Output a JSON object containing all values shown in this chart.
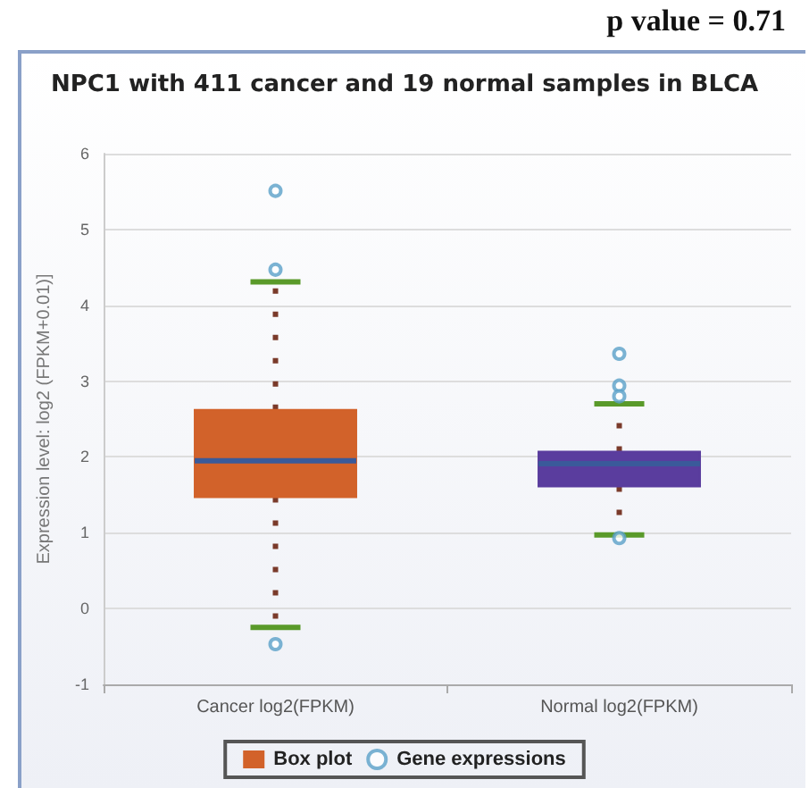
{
  "chart_data": {
    "type": "box",
    "title": "NPC1 with 411 cancer and 19 normal samples in BLCA",
    "annotations": [
      "p value = 0.71"
    ],
    "ylabel": "Expression level: log2 (FPKM+0.01)]",
    "categories": [
      "Cancer log2(FPKM)",
      "Normal log2(FPKM)"
    ],
    "ylim": [
      -1,
      6
    ],
    "yticks": [
      -1,
      0,
      1,
      2,
      3,
      4,
      5,
      6
    ],
    "grid": "y",
    "legend": "bottom",
    "series": [
      {
        "name": "Box plot",
        "colors": [
          "#d2622a",
          "#5a3d9e"
        ],
        "line_style": "dotted",
        "boxes": [
          {
            "low": -0.25,
            "q1": 1.47,
            "median": 1.95,
            "q3": 2.62,
            "high": 4.31
          },
          {
            "low": 0.97,
            "q1": 1.61,
            "median": 1.91,
            "q3": 2.07,
            "high": 2.7
          }
        ]
      },
      {
        "type": "scatter",
        "name": "Gene expressions",
        "color": "#5aa0c8",
        "marker": "circle",
        "x": [
          "Cancer log2(FPKM)",
          "Cancer log2(FPKM)",
          "Cancer log2(FPKM)",
          "Normal log2(FPKM)",
          "Normal log2(FPKM)",
          "Normal log2(FPKM)",
          "Normal log2(FPKM)"
        ],
        "values": [
          5.51,
          4.47,
          -0.47,
          3.36,
          2.94,
          2.8,
          0.93
        ]
      }
    ]
  }
}
